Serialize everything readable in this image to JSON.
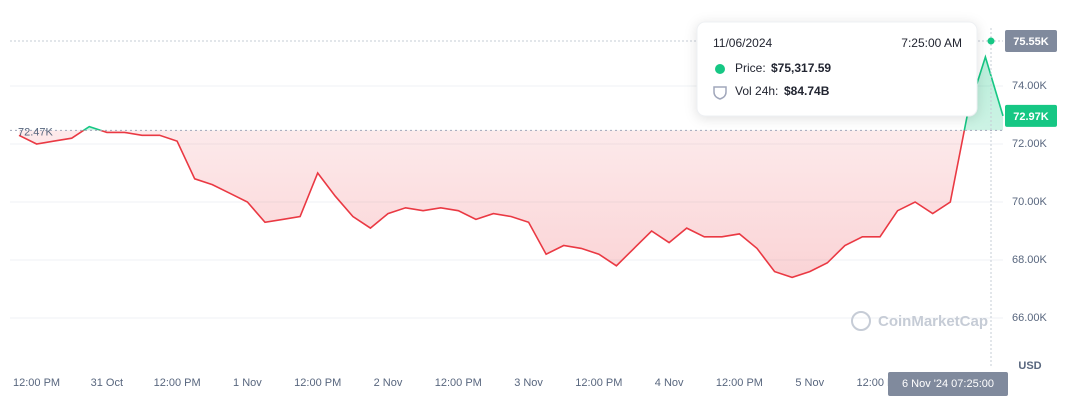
{
  "chart_data": {
    "type": "line",
    "categories": [
      null,
      "12:00 PM",
      null,
      null,
      null,
      "31 Oct",
      null,
      null,
      null,
      "12:00 PM",
      null,
      null,
      null,
      "1 Nov",
      null,
      null,
      null,
      "12:00 PM",
      null,
      null,
      null,
      "2 Nov",
      null,
      null,
      null,
      "12:00 PM",
      null,
      null,
      null,
      "3 Nov",
      null,
      null,
      null,
      "12:00 PM",
      null,
      null,
      null,
      "4 Nov",
      null,
      null,
      null,
      "12:00 PM",
      null,
      null,
      null,
      "5 Nov",
      null,
      null,
      null,
      "12:00 PM",
      null,
      null,
      null,
      null,
      null,
      null,
      null
    ],
    "series": [
      {
        "name": "Price",
        "color": "#ea3943",
        "color_above": "#16c784",
        "values": [
          72300,
          72000,
          72100,
          72200,
          72600,
          72400,
          72400,
          72300,
          72300,
          72100,
          70800,
          70600,
          70300,
          70000,
          69300,
          69400,
          69500,
          71000,
          70200,
          69500,
          69100,
          69600,
          69800,
          69700,
          69800,
          69700,
          69400,
          69600,
          69500,
          69300,
          68200,
          68500,
          68400,
          68200,
          67800,
          68400,
          69000,
          68600,
          69100,
          68800,
          68800,
          68900,
          68400,
          67600,
          67400,
          67600,
          67900,
          68500,
          68800,
          68800,
          69700,
          70000,
          69600,
          70000,
          73100,
          75000,
          72970
        ]
      }
    ],
    "baseline": {
      "value": 72470,
      "label": "72.47K"
    },
    "ylim": [
      65000,
      76400
    ],
    "yticks": [
      {
        "value": 66000,
        "label": "66.00K"
      },
      {
        "value": 68000,
        "label": "68.00K"
      },
      {
        "value": 70000,
        "label": "70.00K"
      },
      {
        "value": 72000,
        "label": "72.00K"
      },
      {
        "value": 74000,
        "label": "74.00K"
      }
    ],
    "grid": true,
    "last_price": {
      "value": 72970,
      "label": "72.97K"
    },
    "crosshair_price": {
      "value": 75550,
      "label": "75.55K"
    },
    "crosshair_time": "6 Nov '24 07:25:00",
    "y_unit": "USD",
    "watermark": "CoinMarketCap",
    "tooltip": {
      "date": "11/06/2024",
      "time": "7:25:00 AM",
      "price_label": "Price:",
      "price_value": "$75,317.59",
      "volume_label": "Vol 24h:",
      "volume_value": "$84.74B"
    }
  }
}
